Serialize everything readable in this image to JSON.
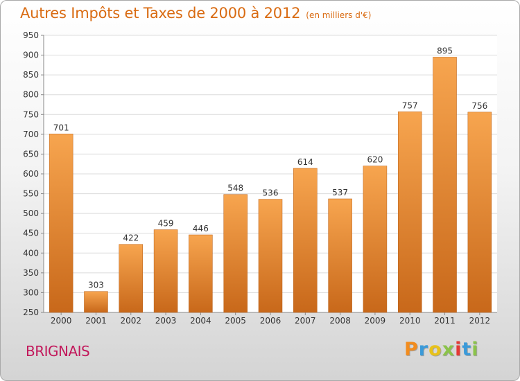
{
  "chart_data": {
    "type": "bar",
    "title": "Autres Impôts et Taxes de 2000 à 2012",
    "subtitle": "(en milliers d'€)",
    "categories": [
      "2000",
      "2001",
      "2002",
      "2003",
      "2004",
      "2005",
      "2006",
      "2007",
      "2008",
      "2009",
      "2010",
      "2011",
      "2012"
    ],
    "values": [
      701,
      303,
      422,
      459,
      446,
      548,
      536,
      614,
      537,
      620,
      757,
      895,
      756
    ],
    "ylim": [
      250,
      950
    ],
    "yticks": [
      250,
      300,
      350,
      400,
      450,
      500,
      550,
      600,
      650,
      700,
      750,
      800,
      850,
      900,
      950
    ],
    "grid": true,
    "bar_color_top": "#f7a54f",
    "bar_color_bottom": "#c8681a"
  },
  "footer": {
    "city": "BRIGNAIS",
    "brand": "Proxiti"
  },
  "colors": {
    "title": "#d96b12",
    "city": "#c2185b",
    "brand_letters": [
      "#f28c1e",
      "#3a9ad9",
      "#e8c21a",
      "#8bc34a",
      "#e53935",
      "#3a9ad9",
      "#8bc34a"
    ]
  }
}
